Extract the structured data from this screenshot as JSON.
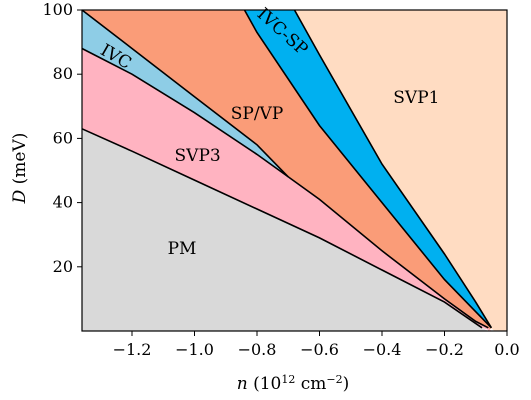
{
  "chart_data": {
    "type": "area",
    "title": "",
    "xlabel": {
      "var": "n",
      "pre": " (10",
      "exp": "12",
      "mid": " cm",
      "exp2": "−2",
      "post": ")"
    },
    "ylabel": {
      "var": "D",
      "rest": " (meV)"
    },
    "xlim": [
      -1.36,
      0.0
    ],
    "ylim": [
      0,
      100
    ],
    "xticks": [
      -1.2,
      -1.0,
      -0.8,
      -0.6,
      -0.4,
      -0.2,
      0.0
    ],
    "xtick_labels": [
      "−1.2",
      "−1.0",
      "−0.8",
      "−0.6",
      "−0.4",
      "−0.2",
      "0.0"
    ],
    "yticks": [
      20,
      40,
      60,
      80,
      100
    ],
    "ytick_labels": [
      "20",
      "40",
      "60",
      "80",
      "100"
    ],
    "boundaries": [
      {
        "name": "PM-SVP3",
        "x": [
          -1.36,
          -1.2,
          -1.0,
          -0.8,
          -0.6,
          -0.4,
          -0.2,
          -0.08
        ],
        "y": [
          63,
          56,
          47,
          38,
          29,
          19,
          9,
          1
        ]
      },
      {
        "name": "SVP3-IVC",
        "x": [
          -1.36,
          -1.2,
          -1.0,
          -0.8,
          -0.7
        ],
        "y": [
          88,
          80,
          68,
          55,
          48
        ]
      },
      {
        "name": "IVC-SP/VP",
        "x": [
          -1.36,
          -1.2,
          -1.0,
          -0.8,
          -0.7
        ],
        "y": [
          100,
          88,
          73,
          58,
          48
        ]
      },
      {
        "name": "SVP3-SP/VP",
        "x": [
          -0.7,
          -0.6,
          -0.4,
          -0.2,
          -0.1,
          -0.06
        ],
        "y": [
          48,
          41,
          25,
          10,
          3,
          1
        ]
      },
      {
        "name": "SP/VP-IVC-SP",
        "x": [
          -0.84,
          -0.8,
          -0.6,
          -0.4,
          -0.2,
          -0.1,
          -0.05
        ],
        "y": [
          100,
          93,
          64,
          40,
          16,
          6,
          1
        ]
      },
      {
        "name": "IVC-SP-SVP1",
        "x": [
          -0.68,
          -0.6,
          -0.4,
          -0.2,
          -0.1,
          -0.05
        ],
        "y": [
          100,
          86,
          52,
          24,
          9,
          1
        ]
      }
    ],
    "regions": [
      {
        "label": "PM",
        "color": "#d9d9d9",
        "label_x": -1.04,
        "label_y": 24
      },
      {
        "label": "SVP3",
        "color": "#ffb3c1",
        "label_x": -0.99,
        "label_y": 53
      },
      {
        "label": "IVC",
        "color": "#8ecde6",
        "label_x": -1.26,
        "label_y": 84,
        "rotate": 30
      },
      {
        "label": "SP/VP",
        "color": "#fa9c78",
        "label_x": -0.8,
        "label_y": 66
      },
      {
        "label": "IVC-SP",
        "color": "#00b0f0",
        "label_x": -0.73,
        "label_y": 92,
        "rotate": 42
      },
      {
        "label": "SVP1",
        "color": "#ffdcc2",
        "label_x": -0.29,
        "label_y": 71
      }
    ]
  }
}
